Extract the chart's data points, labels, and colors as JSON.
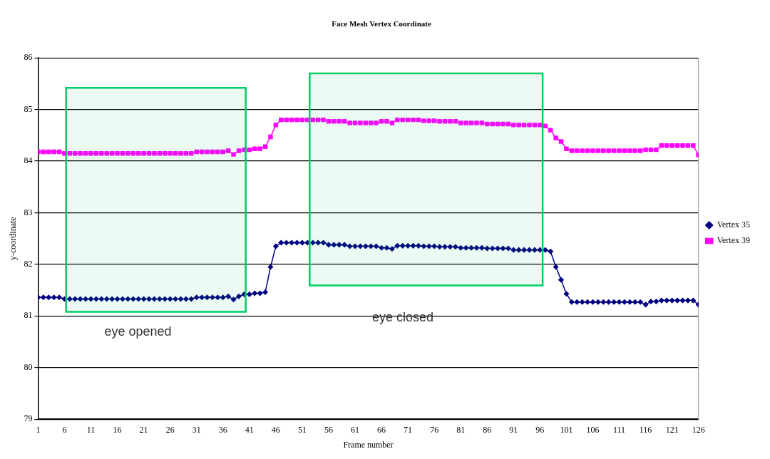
{
  "chart_data": {
    "type": "line",
    "title": "Face Mesh Vertex Coordinate",
    "xlabel": "Frame number",
    "ylabel": "y-coordinate",
    "x": [
      1,
      2,
      3,
      4,
      5,
      6,
      7,
      8,
      9,
      10,
      11,
      12,
      13,
      14,
      15,
      16,
      17,
      18,
      19,
      20,
      21,
      22,
      23,
      24,
      25,
      26,
      27,
      28,
      29,
      30,
      31,
      32,
      33,
      34,
      35,
      36,
      37,
      38,
      39,
      40,
      41,
      42,
      43,
      44,
      45,
      46,
      47,
      48,
      49,
      50,
      51,
      52,
      53,
      54,
      55,
      56,
      57,
      58,
      59,
      60,
      61,
      62,
      63,
      64,
      65,
      66,
      67,
      68,
      69,
      70,
      71,
      72,
      73,
      74,
      75,
      76,
      77,
      78,
      79,
      80,
      81,
      82,
      83,
      84,
      85,
      86,
      87,
      88,
      89,
      90,
      91,
      92,
      93,
      94,
      95,
      96,
      97,
      98,
      99,
      100,
      101,
      102,
      103,
      104,
      105,
      106,
      107,
      108,
      109,
      110,
      111,
      112,
      113,
      114,
      115,
      116,
      117,
      118,
      119,
      120,
      121,
      122,
      123,
      124,
      125,
      126
    ],
    "series": [
      {
        "name": "Vertex 35",
        "color": "#000080",
        "marker": "diamond",
        "values": [
          81.36,
          81.36,
          81.36,
          81.36,
          81.36,
          81.33,
          81.33,
          81.33,
          81.33,
          81.33,
          81.33,
          81.33,
          81.33,
          81.33,
          81.33,
          81.33,
          81.33,
          81.33,
          81.33,
          81.33,
          81.33,
          81.33,
          81.33,
          81.33,
          81.33,
          81.33,
          81.33,
          81.33,
          81.33,
          81.33,
          81.36,
          81.36,
          81.36,
          81.36,
          81.36,
          81.36,
          81.38,
          81.32,
          81.38,
          81.42,
          81.42,
          81.44,
          81.44,
          81.46,
          81.95,
          82.35,
          82.42,
          82.42,
          82.42,
          82.42,
          82.42,
          82.42,
          82.42,
          82.42,
          82.42,
          82.38,
          82.38,
          82.38,
          82.38,
          82.35,
          82.35,
          82.35,
          82.35,
          82.35,
          82.35,
          82.32,
          82.32,
          82.3,
          82.36,
          82.36,
          82.36,
          82.36,
          82.36,
          82.35,
          82.35,
          82.35,
          82.34,
          82.34,
          82.34,
          82.34,
          82.32,
          82.32,
          82.32,
          82.32,
          82.32,
          82.31,
          82.31,
          82.31,
          82.31,
          82.31,
          82.28,
          82.28,
          82.28,
          82.28,
          82.28,
          82.28,
          82.28,
          82.25,
          81.95,
          81.7,
          81.43,
          81.27,
          81.27,
          81.27,
          81.27,
          81.27,
          81.27,
          81.27,
          81.27,
          81.27,
          81.27,
          81.27,
          81.27,
          81.27,
          81.27,
          81.22,
          81.28,
          81.28,
          81.3,
          81.3,
          81.3,
          81.3,
          81.3,
          81.3,
          81.3,
          81.22
        ]
      },
      {
        "name": "Vertex 39",
        "color": "#ff00ff",
        "marker": "square",
        "values": [
          84.18,
          84.18,
          84.18,
          84.18,
          84.18,
          84.15,
          84.15,
          84.15,
          84.15,
          84.15,
          84.15,
          84.15,
          84.15,
          84.15,
          84.15,
          84.15,
          84.15,
          84.15,
          84.15,
          84.15,
          84.15,
          84.15,
          84.15,
          84.15,
          84.15,
          84.15,
          84.15,
          84.15,
          84.15,
          84.15,
          84.18,
          84.18,
          84.18,
          84.18,
          84.18,
          84.18,
          84.2,
          84.13,
          84.2,
          84.22,
          84.22,
          84.24,
          84.24,
          84.28,
          84.47,
          84.7,
          84.8,
          84.8,
          84.8,
          84.8,
          84.8,
          84.8,
          84.8,
          84.8,
          84.8,
          84.77,
          84.77,
          84.77,
          84.77,
          84.74,
          84.74,
          84.74,
          84.74,
          84.74,
          84.74,
          84.77,
          84.77,
          84.74,
          84.8,
          84.8,
          84.8,
          84.8,
          84.8,
          84.78,
          84.78,
          84.78,
          84.77,
          84.77,
          84.77,
          84.77,
          84.74,
          84.74,
          84.74,
          84.74,
          84.74,
          84.72,
          84.72,
          84.72,
          84.72,
          84.72,
          84.7,
          84.7,
          84.7,
          84.7,
          84.7,
          84.7,
          84.68,
          84.6,
          84.45,
          84.38,
          84.24,
          84.2,
          84.2,
          84.2,
          84.2,
          84.2,
          84.2,
          84.2,
          84.2,
          84.2,
          84.2,
          84.2,
          84.2,
          84.2,
          84.2,
          84.22,
          84.22,
          84.22,
          84.3,
          84.3,
          84.3,
          84.3,
          84.3,
          84.3,
          84.3,
          84.12
        ]
      }
    ],
    "xlim": [
      1,
      126
    ],
    "xticks": [
      1,
      6,
      11,
      16,
      21,
      26,
      31,
      36,
      41,
      46,
      51,
      56,
      61,
      66,
      71,
      76,
      81,
      86,
      91,
      96,
      101,
      106,
      111,
      116,
      121,
      126
    ],
    "ylim": [
      79,
      86
    ],
    "yticks": [
      79,
      80,
      81,
      82,
      83,
      84,
      85,
      86
    ],
    "bands": [
      {
        "axis": "x",
        "from": 6.3,
        "to": 40.3,
        "label": "eye opened",
        "color": "#00cc66"
      },
      {
        "axis": "x",
        "from": 52.4,
        "to": 96.5,
        "label": "eye closed",
        "color": "#00cc66"
      }
    ],
    "grid": "y",
    "legend": "right",
    "line_style": "solid"
  }
}
